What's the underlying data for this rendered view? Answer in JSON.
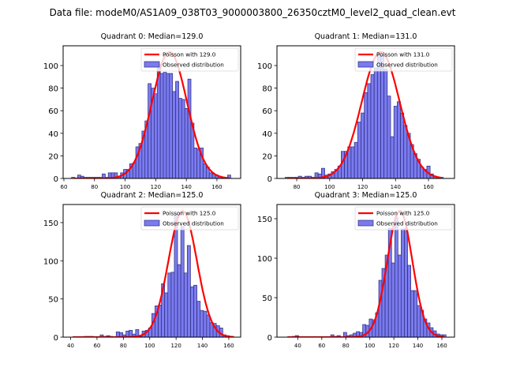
{
  "figure": {
    "suptitle": "Data file: modeM0/AS1A09_038T03_9000003800_26350cztM0_level2_quad_clean.evt"
  },
  "colors": {
    "bar_fill": "#7b7bf0",
    "bar_edge": "#2b2b7a",
    "poisson_line": "#ff0000"
  },
  "chart_data": [
    {
      "type": "bar",
      "title": "Quadrant 0: Median=129.0",
      "median": 129.0,
      "xlabel": "",
      "ylabel": "",
      "xlim": [
        59.5,
        175.5
      ],
      "ylim": [
        0,
        117.5
      ],
      "xticks": [
        60,
        80,
        100,
        120,
        140,
        160
      ],
      "yticks": [
        0,
        20,
        40,
        60,
        80,
        100
      ],
      "legend": {
        "placement": "top-right",
        "entries": [
          "Poisson with 129.0",
          "Observed distribution"
        ]
      },
      "bin_width": 2.05,
      "bins_x": [
        66,
        68,
        70,
        72,
        74,
        76,
        78,
        80,
        82,
        84,
        86,
        88,
        90,
        92,
        94,
        96,
        98,
        100,
        102,
        104,
        106,
        108,
        110,
        112,
        114,
        116,
        118,
        120,
        122,
        124,
        126,
        128,
        130,
        132,
        134,
        136,
        138,
        140,
        142,
        144,
        146,
        148,
        150,
        152,
        154,
        156,
        158,
        160,
        162,
        164,
        166,
        168
      ],
      "counts": [
        1,
        0,
        3,
        2,
        1,
        1,
        1,
        1,
        1,
        1,
        4,
        1,
        5,
        5,
        5,
        2,
        5,
        8,
        8,
        13,
        14,
        28,
        31,
        42,
        51,
        84,
        80,
        75,
        101,
        93,
        94,
        93,
        93,
        77,
        86,
        71,
        70,
        62,
        88,
        49,
        27,
        26,
        27,
        13,
        10,
        5,
        4,
        3,
        2,
        1,
        0,
        3
      ],
      "poisson": {
        "label": "Poisson with 129.0",
        "mean": 129.0,
        "peak": 112,
        "sigma": 11.4
      }
    },
    {
      "type": "bar",
      "title": "Quadrant 1: Median=131.0",
      "median": 131.0,
      "xlabel": "",
      "ylabel": "",
      "xlim": [
        68,
        175.8
      ],
      "ylim": [
        0,
        117.5
      ],
      "xticks": [
        80,
        100,
        120,
        140,
        160
      ],
      "yticks": [
        0,
        20,
        40,
        60,
        80,
        100
      ],
      "legend": {
        "placement": "top-right",
        "entries": [
          "Poisson with 131.0",
          "Observed distribution"
        ]
      },
      "bin_width": 2.0,
      "bins_x": [
        74,
        76,
        78,
        80,
        82,
        84,
        86,
        88,
        90,
        92,
        94,
        96,
        98,
        100,
        102,
        104,
        106,
        108,
        110,
        112,
        114,
        116,
        118,
        120,
        122,
        124,
        126,
        128,
        130,
        132,
        134,
        136,
        138,
        140,
        142,
        144,
        146,
        148,
        150,
        152,
        154,
        156,
        158,
        160,
        162,
        164,
        166,
        168
      ],
      "counts": [
        1,
        1,
        1,
        1,
        2,
        1,
        2,
        2,
        1,
        5,
        4,
        9,
        3,
        4,
        6,
        8,
        11,
        24,
        24,
        28,
        28,
        32,
        50,
        58,
        76,
        84,
        92,
        98,
        112,
        109,
        97,
        73,
        37,
        64,
        68,
        58,
        47,
        40,
        30,
        22,
        17,
        10,
        8,
        11,
        4,
        2,
        1,
        1
      ],
      "poisson": {
        "label": "Poisson with 131.0",
        "mean": 131.0,
        "peak": 112,
        "sigma": 11.5
      }
    },
    {
      "type": "bar",
      "title": "Quadrant 2: Median=125.0",
      "median": 125.0,
      "xlabel": "",
      "ylabel": "",
      "xlim": [
        34.3,
        169
      ],
      "ylim": [
        0,
        173.7
      ],
      "xticks": [
        40,
        60,
        80,
        100,
        120,
        140,
        160
      ],
      "yticks": [
        0,
        50,
        100,
        150
      ],
      "legend": {
        "placement": "top-right",
        "entries": [
          "Poisson with 125.0",
          "Observed distribution"
        ]
      },
      "bin_width": 2.45,
      "bins_x": [
        41.5,
        44,
        46.4,
        48.9,
        51.3,
        53.8,
        56.2,
        58.7,
        61.1,
        63.6,
        66,
        68.5,
        70.9,
        73.4,
        75.8,
        78.3,
        80.7,
        83.2,
        85.6,
        88.1,
        90.5,
        93,
        95.4,
        97.9,
        100.3,
        102.8,
        105.2,
        107.7,
        110.1,
        112.6,
        115,
        117.5,
        119.9,
        122.4,
        124.8,
        127.3,
        129.7,
        132.2,
        134.6,
        137.1,
        139.5,
        142,
        144.4,
        146.9,
        149.3,
        151.8,
        154.2,
        156.7,
        159.1,
        161.6,
        164
      ],
      "counts": [
        0,
        0,
        0,
        0,
        1,
        1,
        1,
        0,
        0,
        3,
        1,
        2,
        1,
        0,
        7,
        6,
        3,
        8,
        9,
        4,
        10,
        1,
        8,
        9,
        12,
        31,
        41,
        42,
        70,
        58,
        84,
        85,
        161,
        95,
        145,
        84,
        120,
        66,
        68,
        47,
        35,
        34,
        29,
        19,
        18,
        15,
        12,
        3,
        2,
        1,
        0
      ],
      "poisson": {
        "label": "Poisson with 125.0",
        "mean": 125.0,
        "peak": 165,
        "sigma": 10.8
      }
    },
    {
      "type": "bar",
      "title": "Quadrant 3: Median=125.0",
      "median": 125.0,
      "xlabel": "",
      "ylabel": "",
      "xlim": [
        22.7,
        170.5
      ],
      "ylim": [
        0,
        168
      ],
      "xticks": [
        40,
        60,
        80,
        100,
        120,
        140,
        160
      ],
      "yticks": [
        0,
        50,
        100,
        150
      ],
      "legend": {
        "placement": "top-right",
        "entries": [
          "Poisson with 125.0",
          "Observed distribution"
        ]
      },
      "bin_width": 2.67,
      "bins_x": [
        31.4,
        34.1,
        36.8,
        39.4,
        42.1,
        44.8,
        47.4,
        50.1,
        52.8,
        55.4,
        58.1,
        60.8,
        63.4,
        66.1,
        68.8,
        71.4,
        74.1,
        76.8,
        79.4,
        82.1,
        84.8,
        87.4,
        90.1,
        92.8,
        95.4,
        98.1,
        100.8,
        103.4,
        106.1,
        108.8,
        111.4,
        114.1,
        116.8,
        119.4,
        122.1,
        124.8,
        127.4,
        130.1,
        132.8,
        135.4,
        138.1,
        140.8,
        143.4,
        146.1,
        148.8,
        151.4,
        154.1,
        156.8,
        159.4,
        162.1
      ],
      "counts": [
        0,
        0,
        1,
        2,
        0,
        0,
        0,
        0,
        0,
        0,
        0,
        0,
        0,
        0,
        3,
        1,
        2,
        0,
        6,
        2,
        3,
        5,
        7,
        6,
        16,
        15,
        23,
        22,
        31,
        72,
        87,
        104,
        138,
        94,
        152,
        104,
        137,
        138,
        91,
        59,
        59,
        40,
        34,
        23,
        18,
        12,
        8,
        4,
        3,
        3
      ],
      "poisson": {
        "label": "Poisson with 125.0",
        "mean": 125.0,
        "peak": 160,
        "sigma": 10.4
      }
    }
  ]
}
